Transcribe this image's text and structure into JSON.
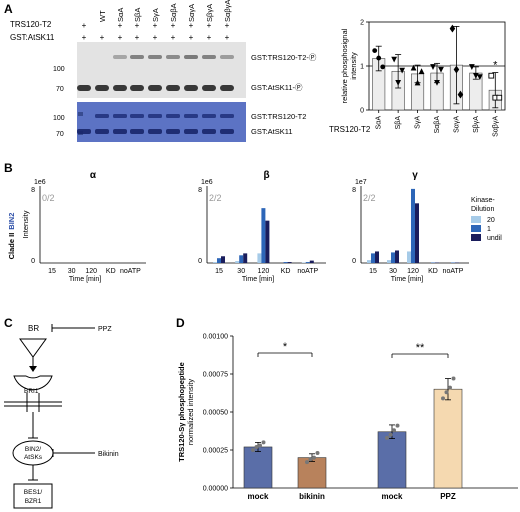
{
  "panels": {
    "A": {
      "letter": "A",
      "header_left": "TRS120-T2",
      "header_left2": "GST:AtSK11",
      "lanes": [
        "WT",
        "SαA",
        "SβA",
        "SγA",
        "SαβA",
        "SαγA",
        "SβγA",
        "SαβγA"
      ],
      "row1_plus": [
        "+",
        "",
        "+",
        "+",
        "+",
        "+",
        "+",
        "+",
        "+"
      ],
      "row2_plus": [
        "+",
        "+",
        "+",
        "+",
        "+",
        "+",
        "+",
        "+",
        "+"
      ],
      "blot_mw": [
        "100",
        "70"
      ],
      "stain_mw": [
        "100",
        "70"
      ],
      "blot_labels": [
        "GST:TRS120-T2-Ⓟ",
        "GST:AtSK11-Ⓟ"
      ],
      "stain_labels": [
        "GST:TRS120-T2",
        "GST:AtSK11"
      ]
    },
    "B": {
      "letter": "B",
      "ylabel_clade": "Clade II",
      "ylabel_bin2": "BIN2",
      "ylabel_intensity": "Intensity",
      "legend_title_1": "Kinase-",
      "legend_title_2": "Dilution",
      "legend_colors": [
        "#a6cbe8",
        "#2d66b8",
        "#1a1d5c"
      ]
    },
    "C": {
      "letter": "C",
      "nodes": {
        "br": "BR",
        "ppz": "PPZ",
        "bri1": "BRI1",
        "bin2": "BIN2/",
        "atsks": "AtSKs",
        "bikinin": "Bikinin",
        "bes1": "BES1/",
        "bzr1": "BZR1"
      }
    },
    "D": {
      "letter": "D"
    }
  },
  "chart_data": [
    {
      "id": "A-right",
      "type": "bar",
      "title": "",
      "xlabel": "TRS120-T2",
      "ylabel": "relative phosphosignal intensity",
      "ylim": [
        0,
        2
      ],
      "yticks": [
        0,
        1,
        2
      ],
      "categories": [
        "SαA",
        "SβA",
        "SγA",
        "SαβA",
        "SαγA",
        "SβγA",
        "SαβγA"
      ],
      "values": [
        1.17,
        0.88,
        0.82,
        0.84,
        1.02,
        0.84,
        0.45
      ],
      "errors": [
        0.28,
        0.38,
        0.2,
        0.22,
        0.88,
        0.14,
        0.4
      ],
      "points": [
        [
          1.35,
          1.18,
          0.98
        ],
        [
          1.15,
          0.62,
          0.9
        ],
        [
          0.96,
          0.62,
          0.88
        ],
        [
          0.98,
          0.62,
          0.92
        ],
        [
          1.85,
          0.92,
          0.35
        ],
        [
          0.98,
          0.78,
          0.75
        ],
        [
          0.78,
          0.28,
          0.28
        ]
      ],
      "markers": [
        "circle",
        "triangle-down",
        "triangle-up",
        "triangle-down",
        "diamond",
        "triangle-down",
        "square"
      ],
      "annotations": [
        {
          "category": "SαβγA",
          "text": "*"
        }
      ],
      "reference_line": 1
    },
    {
      "id": "B-alpha",
      "type": "bar",
      "title": "α",
      "xlabel": "Time [min]",
      "ylabel": "Intensity",
      "scale_label": "1e6",
      "ratio": "0/2",
      "ylim": [
        0,
        8
      ],
      "yticks": [
        0,
        8
      ],
      "categories": [
        "15",
        "30",
        "120",
        "KD",
        "noATP"
      ],
      "series": [
        {
          "name": "20",
          "values": [
            0,
            0,
            0,
            0,
            0
          ]
        },
        {
          "name": "1",
          "values": [
            0,
            0,
            0,
            0,
            0
          ]
        },
        {
          "name": "undil",
          "values": [
            0,
            0,
            0,
            0,
            0
          ]
        }
      ]
    },
    {
      "id": "B-beta",
      "type": "bar",
      "title": "β",
      "xlabel": "Time [min]",
      "ylabel": "Intensity",
      "scale_label": "1e6",
      "ratio": "2/2",
      "ylim": [
        0,
        8
      ],
      "yticks": [
        0,
        8
      ],
      "categories": [
        "15",
        "30",
        "120",
        "KD",
        "noATP"
      ],
      "series": [
        {
          "name": "20",
          "values": [
            0.1,
            0.2,
            1.0,
            0,
            0.05
          ]
        },
        {
          "name": "1",
          "values": [
            0.5,
            0.8,
            5.7,
            0.1,
            0.1
          ]
        },
        {
          "name": "undil",
          "values": [
            0.7,
            1.0,
            4.4,
            0.1,
            0.25
          ]
        }
      ]
    },
    {
      "id": "B-gamma",
      "type": "bar",
      "title": "γ",
      "xlabel": "Time [min]",
      "ylabel": "Intensity",
      "scale_label": "1e7",
      "ratio": "2/2",
      "ylim": [
        0,
        8
      ],
      "yticks": [
        0,
        8
      ],
      "categories": [
        "15",
        "30",
        "120",
        "KD",
        "noATP"
      ],
      "series": [
        {
          "name": "20",
          "values": [
            0.3,
            0.3,
            1.2,
            0,
            0
          ]
        },
        {
          "name": "1",
          "values": [
            1.0,
            1.1,
            7.7,
            0.05,
            0.05
          ]
        },
        {
          "name": "undil",
          "values": [
            1.2,
            1.3,
            6.2,
            0.05,
            0.05
          ]
        }
      ]
    },
    {
      "id": "D",
      "type": "bar",
      "title": "",
      "xlabel": "",
      "ylabel": "TRS120-Sγ phosphopeptide",
      "ylabel2": "normalized intensity",
      "ylim": [
        0,
        0.001
      ],
      "yticks": [
        "0.00000",
        "0.00025",
        "0.00050",
        "0.00075",
        "0.00100"
      ],
      "categories": [
        "mock",
        "bikinin",
        "mock",
        "PPZ"
      ],
      "values": [
        0.00027,
        0.0002,
        0.00037,
        0.00065
      ],
      "errors": [
        3e-05,
        2.5e-05,
        4.5e-05,
        7e-05
      ],
      "points": [
        [
          0.00025,
          0.00027,
          0.00028,
          0.0003
        ],
        [
          0.00017,
          0.00019,
          0.0002,
          0.00023
        ],
        [
          0.00033,
          0.00035,
          0.00038,
          0.00041
        ],
        [
          0.00059,
          0.00063,
          0.00066,
          0.00072
        ]
      ],
      "colors": [
        "#5a6ea8",
        "#b8825c",
        "#5a6ea8",
        "#f5d9b0"
      ],
      "significance": [
        {
          "from": 0,
          "to": 1,
          "text": "*"
        },
        {
          "from": 2,
          "to": 3,
          "text": "**"
        }
      ]
    }
  ]
}
